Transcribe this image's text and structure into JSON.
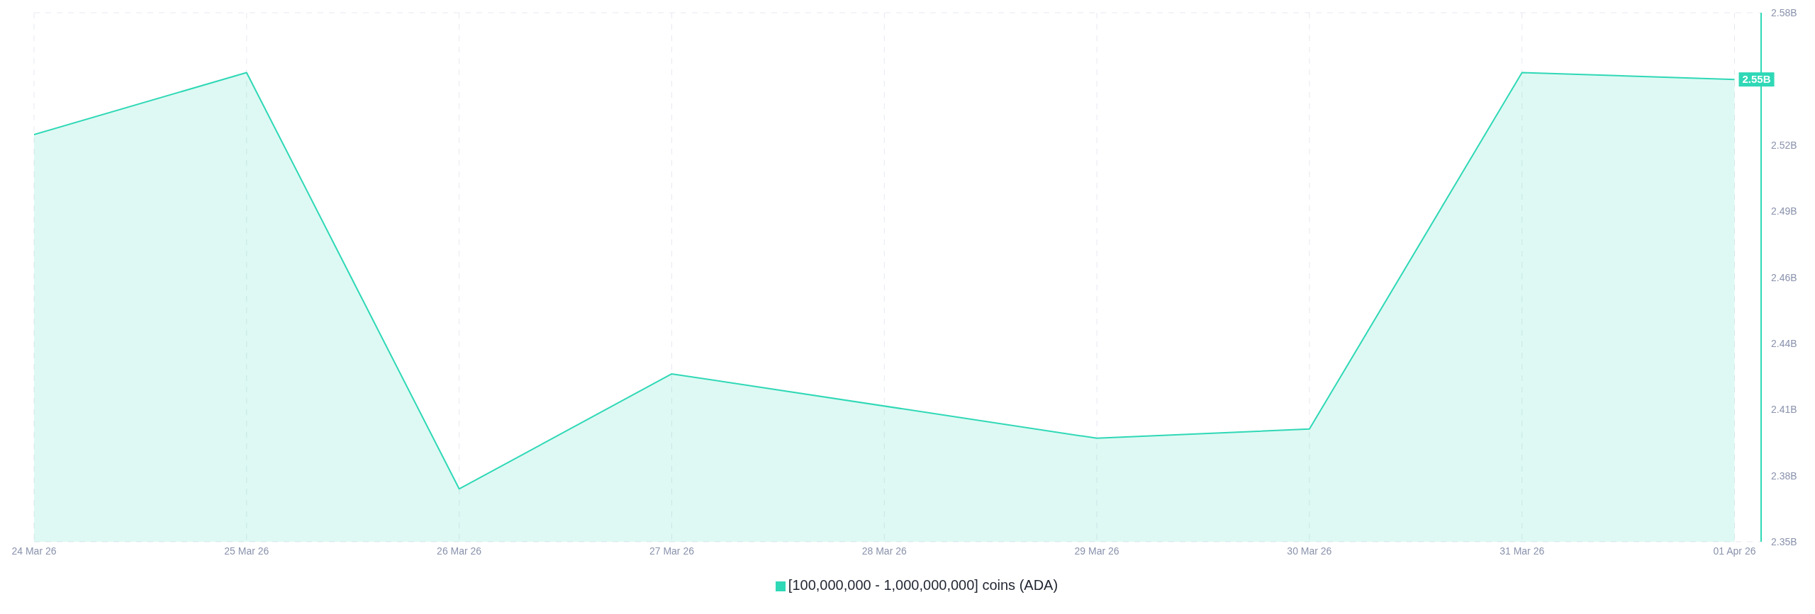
{
  "chart_data": {
    "type": "area",
    "x": [
      "--03-24",
      "--03-25",
      "--03-26",
      "--03-27",
      "--03-29",
      "--03-30",
      "--03-31",
      "--04-01"
    ],
    "series": [
      {
        "name": "[100,000,000 - 1,000,000,000] coins (ADA)",
        "color": "#2fd8b6",
        "values": [
          2.527,
          2.554,
          2.373,
          2.423,
          2.395,
          2.399,
          2.554,
          2.551
        ],
        "value_labels": [
          null,
          null,
          null,
          null,
          null,
          null,
          null,
          "2.55B"
        ]
      }
    ],
    "xlim": [
      "--03-24",
      "--04-01T03:00"
    ],
    "xticks": [
      {
        "value": "--03-24",
        "label": "24 Mar 26"
      },
      {
        "value": "--03-25",
        "label": "25 Mar 26"
      },
      {
        "value": "--03-26",
        "label": "26 Mar 26"
      },
      {
        "value": "--03-27",
        "label": "27 Mar 26"
      },
      {
        "value": "--03-28",
        "label": "28 Mar 26"
      },
      {
        "value": "--03-29",
        "label": "29 Mar 26"
      },
      {
        "value": "--03-30",
        "label": "30 Mar 26"
      },
      {
        "value": "--03-31",
        "label": "31 Mar 26"
      },
      {
        "value": "--04-01",
        "label": "01 Apr 26"
      }
    ],
    "ylim": [
      2.35,
      2.58
    ],
    "yticks": [
      {
        "value": 2.35,
        "label": "2.35B"
      },
      {
        "value": 2.37875,
        "label": "2.38B"
      },
      {
        "value": 2.4075,
        "label": "2.41B"
      },
      {
        "value": 2.43625,
        "label": "2.44B"
      },
      {
        "value": 2.465,
        "label": "2.46B"
      },
      {
        "value": 2.49375,
        "label": "2.49B"
      },
      {
        "value": 2.5225,
        "label": "2.52B"
      },
      {
        "value": 2.55125,
        "label": null
      },
      {
        "value": 2.58,
        "label": "2.58B"
      }
    ],
    "grid": true,
    "legend": "bottom",
    "marker": "none",
    "line_style": "solid"
  }
}
